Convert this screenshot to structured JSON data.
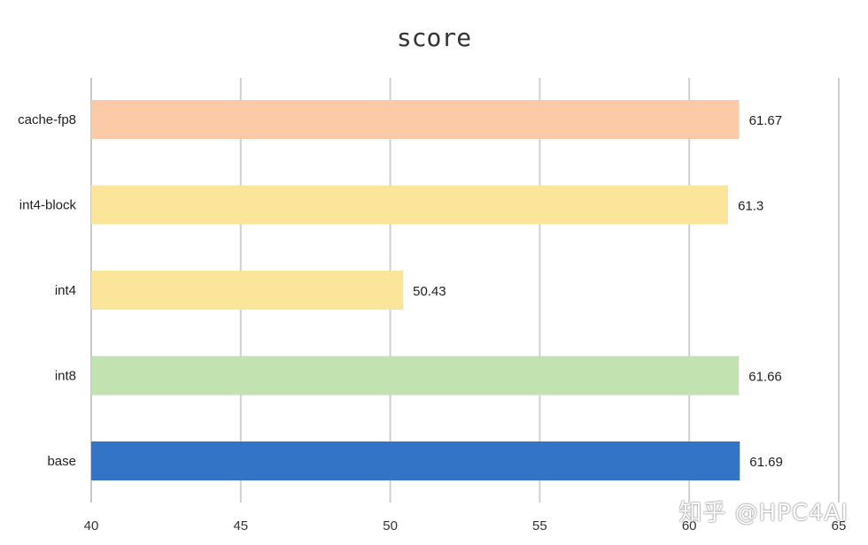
{
  "chart_data": {
    "type": "bar",
    "orientation": "horizontal",
    "title": "score",
    "categories": [
      "cache-fp8",
      "int4-block",
      "int4",
      "int8",
      "base"
    ],
    "values": [
      61.67,
      61.3,
      50.43,
      61.66,
      61.69
    ],
    "data_labels": [
      "61.67",
      "61.3",
      "50.43",
      "61.66",
      "61.69"
    ],
    "bar_colors": [
      "#FDCAA8",
      "#FBE59A",
      "#FBE59A",
      "#C2E2B0",
      "#3474C7"
    ],
    "xlim": [
      40,
      65
    ],
    "xticks": [
      40,
      45,
      50,
      55,
      60,
      65
    ],
    "grid": "vertical",
    "xlabel": "",
    "ylabel": ""
  },
  "watermark": "知乎 @HPC4AI"
}
